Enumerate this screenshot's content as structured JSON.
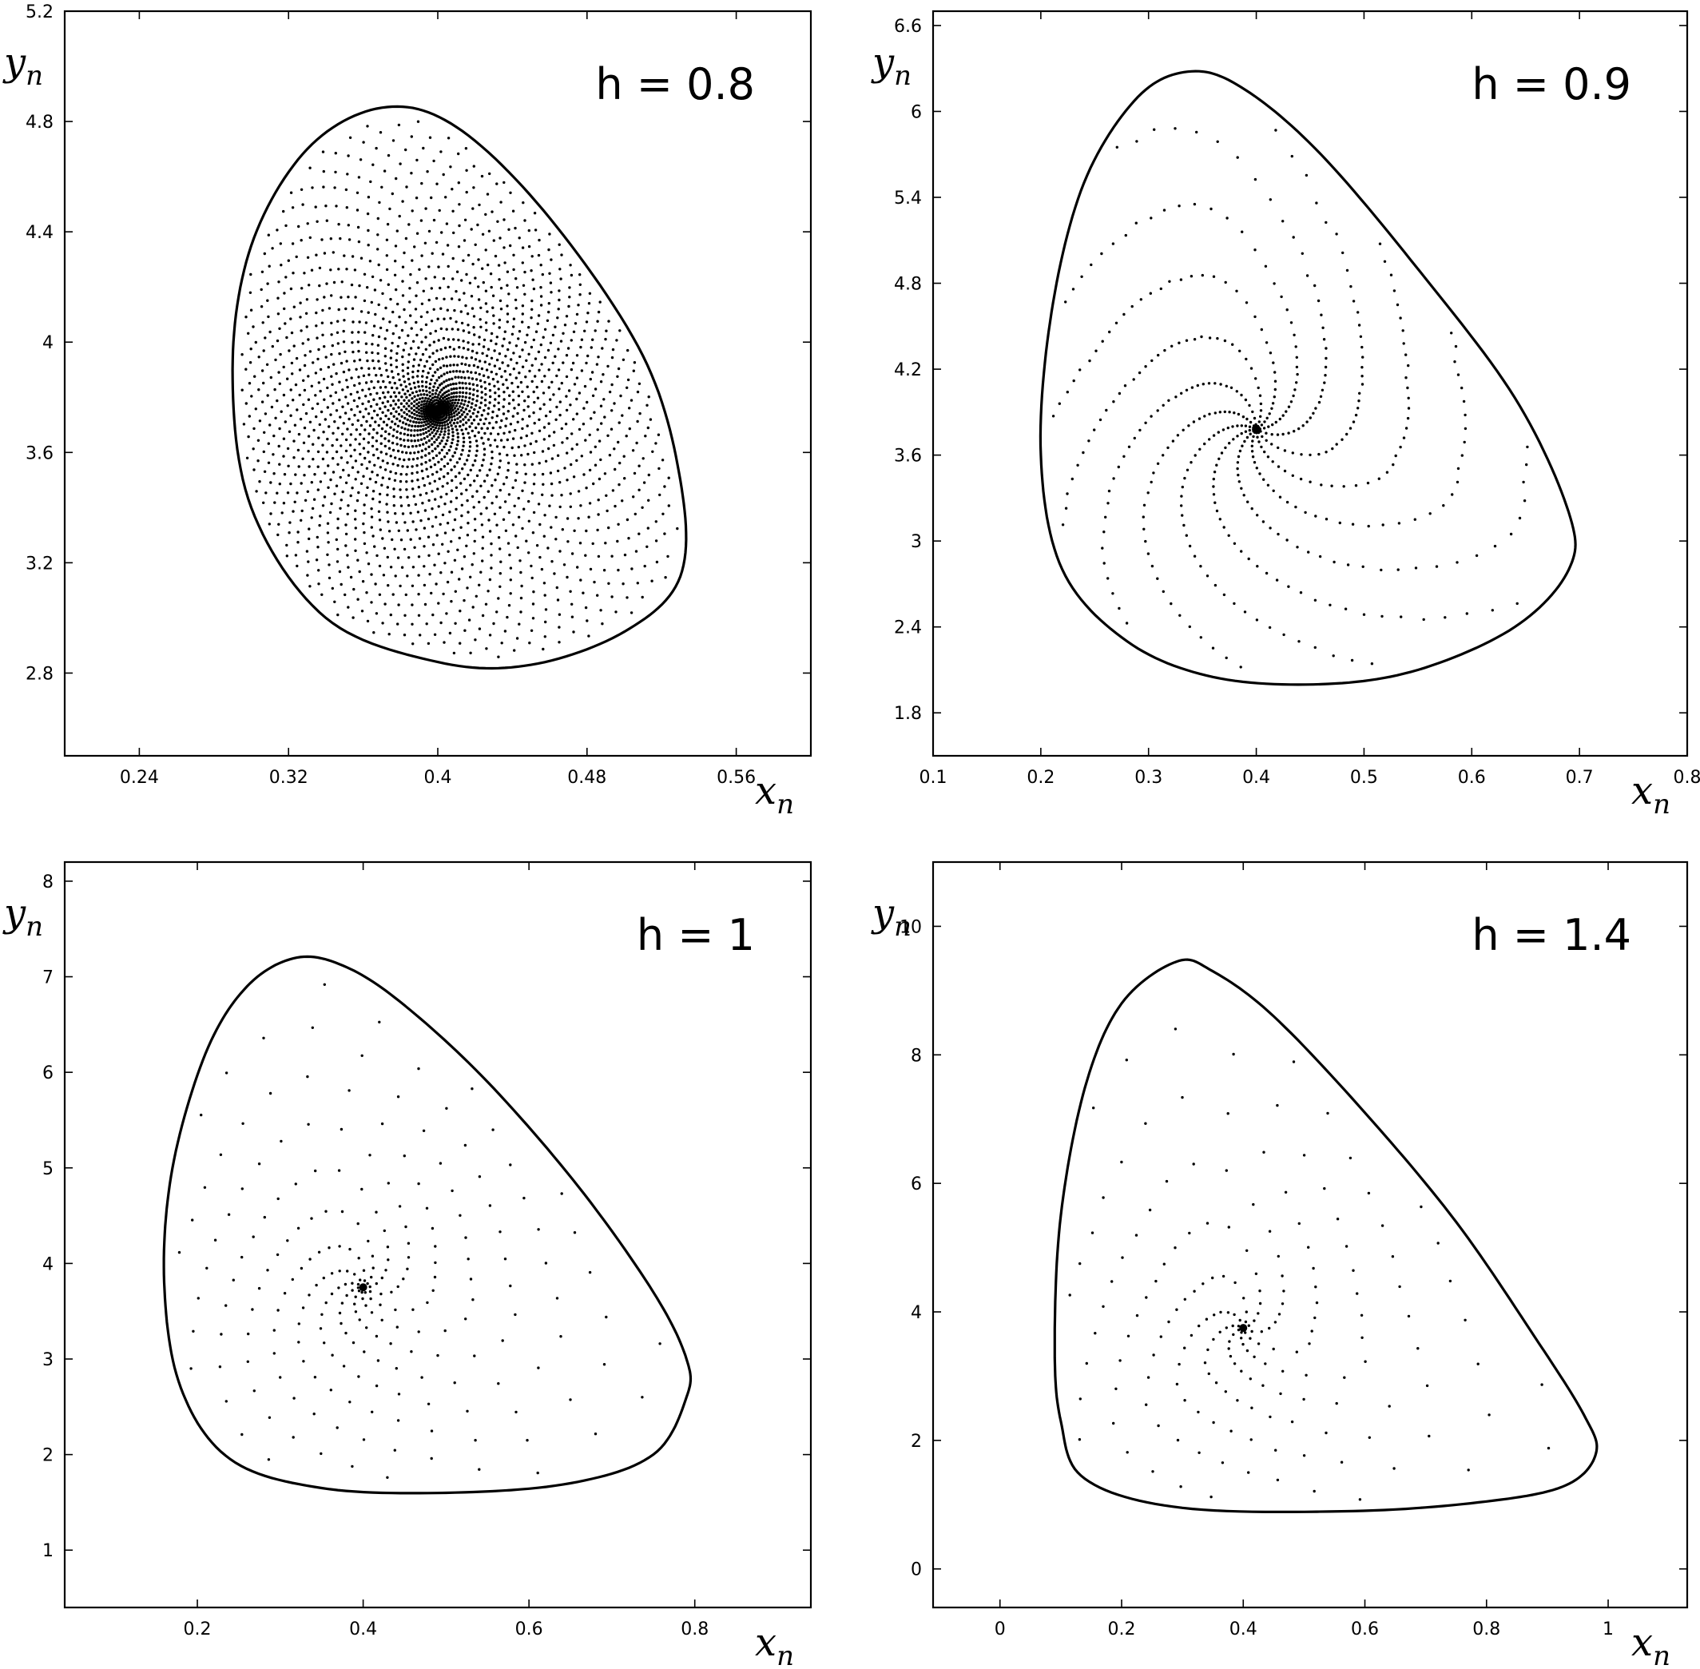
{
  "chart_data": [
    {
      "type": "scatter",
      "title": "h = 0.8",
      "xlabel": "x_n",
      "ylabel": "y_n",
      "xlim": [
        0.2,
        0.6
      ],
      "ylim": [
        2.5,
        5.2
      ],
      "xticks": [
        "0.24",
        "0.32",
        "0.4",
        "0.48",
        "0.56"
      ],
      "yticks": [
        "2.8",
        "3.2",
        "3.6",
        "4",
        "4.4",
        "4.8",
        "5.2"
      ],
      "fixed_point": [
        0.4,
        3.75
      ],
      "invariant_curve": [
        [
          0.29,
          3.9
        ],
        [
          0.3,
          4.35
        ],
        [
          0.33,
          4.7
        ],
        [
          0.37,
          4.85
        ],
        [
          0.41,
          4.78
        ],
        [
          0.46,
          4.45
        ],
        [
          0.51,
          3.95
        ],
        [
          0.53,
          3.5
        ],
        [
          0.53,
          3.15
        ],
        [
          0.5,
          2.95
        ],
        [
          0.45,
          2.83
        ],
        [
          0.4,
          2.84
        ],
        [
          0.34,
          3.0
        ],
        [
          0.3,
          3.4
        ]
      ],
      "spiral_arms": 36
    },
    {
      "type": "scatter",
      "title": "h = 0.9",
      "xlabel": "x_n",
      "ylabel": "y_n",
      "xlim": [
        0.1,
        0.8
      ],
      "ylim": [
        1.5,
        6.7
      ],
      "xticks": [
        "0.1",
        "0.2",
        "0.3",
        "0.4",
        "0.5",
        "0.6",
        "0.7",
        "0.8"
      ],
      "yticks": [
        "1.8",
        "2.4",
        "3",
        "3.6",
        "4.2",
        "4.8",
        "5.4",
        "6",
        "6.6"
      ],
      "fixed_point": [
        0.4,
        3.78
      ],
      "invariant_curve": [
        [
          0.2,
          3.6
        ],
        [
          0.21,
          4.6
        ],
        [
          0.24,
          5.5
        ],
        [
          0.29,
          6.1
        ],
        [
          0.34,
          6.28
        ],
        [
          0.39,
          6.15
        ],
        [
          0.46,
          5.7
        ],
        [
          0.55,
          4.9
        ],
        [
          0.64,
          4.0
        ],
        [
          0.69,
          3.2
        ],
        [
          0.69,
          2.8
        ],
        [
          0.64,
          2.4
        ],
        [
          0.55,
          2.1
        ],
        [
          0.46,
          2.0
        ],
        [
          0.36,
          2.05
        ],
        [
          0.28,
          2.3
        ],
        [
          0.22,
          2.8
        ]
      ],
      "spiral_arms": 12
    },
    {
      "type": "scatter",
      "title": "h = 1",
      "xlabel": "x_n",
      "ylabel": "y_n",
      "xlim": [
        0.04,
        0.94
      ],
      "ylim": [
        0.4,
        8.2
      ],
      "xticks": [
        "0.2",
        "0.4",
        "0.6",
        "0.8"
      ],
      "yticks": [
        "1",
        "2",
        "3",
        "4",
        "5",
        "6",
        "7",
        "8"
      ],
      "fixed_point": [
        0.4,
        3.75
      ],
      "invariant_curve": [
        [
          0.16,
          3.8
        ],
        [
          0.17,
          5.0
        ],
        [
          0.21,
          6.2
        ],
        [
          0.26,
          6.9
        ],
        [
          0.32,
          7.2
        ],
        [
          0.38,
          7.1
        ],
        [
          0.45,
          6.7
        ],
        [
          0.55,
          5.9
        ],
        [
          0.66,
          4.8
        ],
        [
          0.75,
          3.7
        ],
        [
          0.79,
          3.0
        ],
        [
          0.79,
          2.6
        ],
        [
          0.75,
          2.0
        ],
        [
          0.65,
          1.7
        ],
        [
          0.5,
          1.6
        ],
        [
          0.35,
          1.65
        ],
        [
          0.24,
          1.95
        ],
        [
          0.18,
          2.7
        ]
      ],
      "spiral_arms": 10
    },
    {
      "type": "scatter",
      "title": "h = 1.4",
      "xlabel": "x_n",
      "ylabel": "y_n",
      "xlim": [
        -0.11,
        1.13
      ],
      "ylim": [
        -0.6,
        11.0
      ],
      "xticks": [
        "0",
        "0.2",
        "0.4",
        "0.6",
        "0.8",
        "1"
      ],
      "yticks": [
        "0",
        "2",
        "4",
        "6",
        "8",
        "10"
      ],
      "fixed_point": [
        0.4,
        3.75
      ],
      "invariant_curve": [
        [
          0.09,
          3.5
        ],
        [
          0.1,
          5.5
        ],
        [
          0.14,
          7.5
        ],
        [
          0.2,
          8.8
        ],
        [
          0.29,
          9.45
        ],
        [
          0.35,
          9.3
        ],
        [
          0.45,
          8.6
        ],
        [
          0.6,
          7.1
        ],
        [
          0.75,
          5.4
        ],
        [
          0.88,
          3.6
        ],
        [
          0.96,
          2.4
        ],
        [
          0.98,
          1.8
        ],
        [
          0.93,
          1.3
        ],
        [
          0.8,
          1.05
        ],
        [
          0.58,
          0.9
        ],
        [
          0.3,
          0.95
        ],
        [
          0.14,
          1.4
        ],
        [
          0.1,
          2.3
        ]
      ],
      "spiral_arms": 8
    }
  ]
}
